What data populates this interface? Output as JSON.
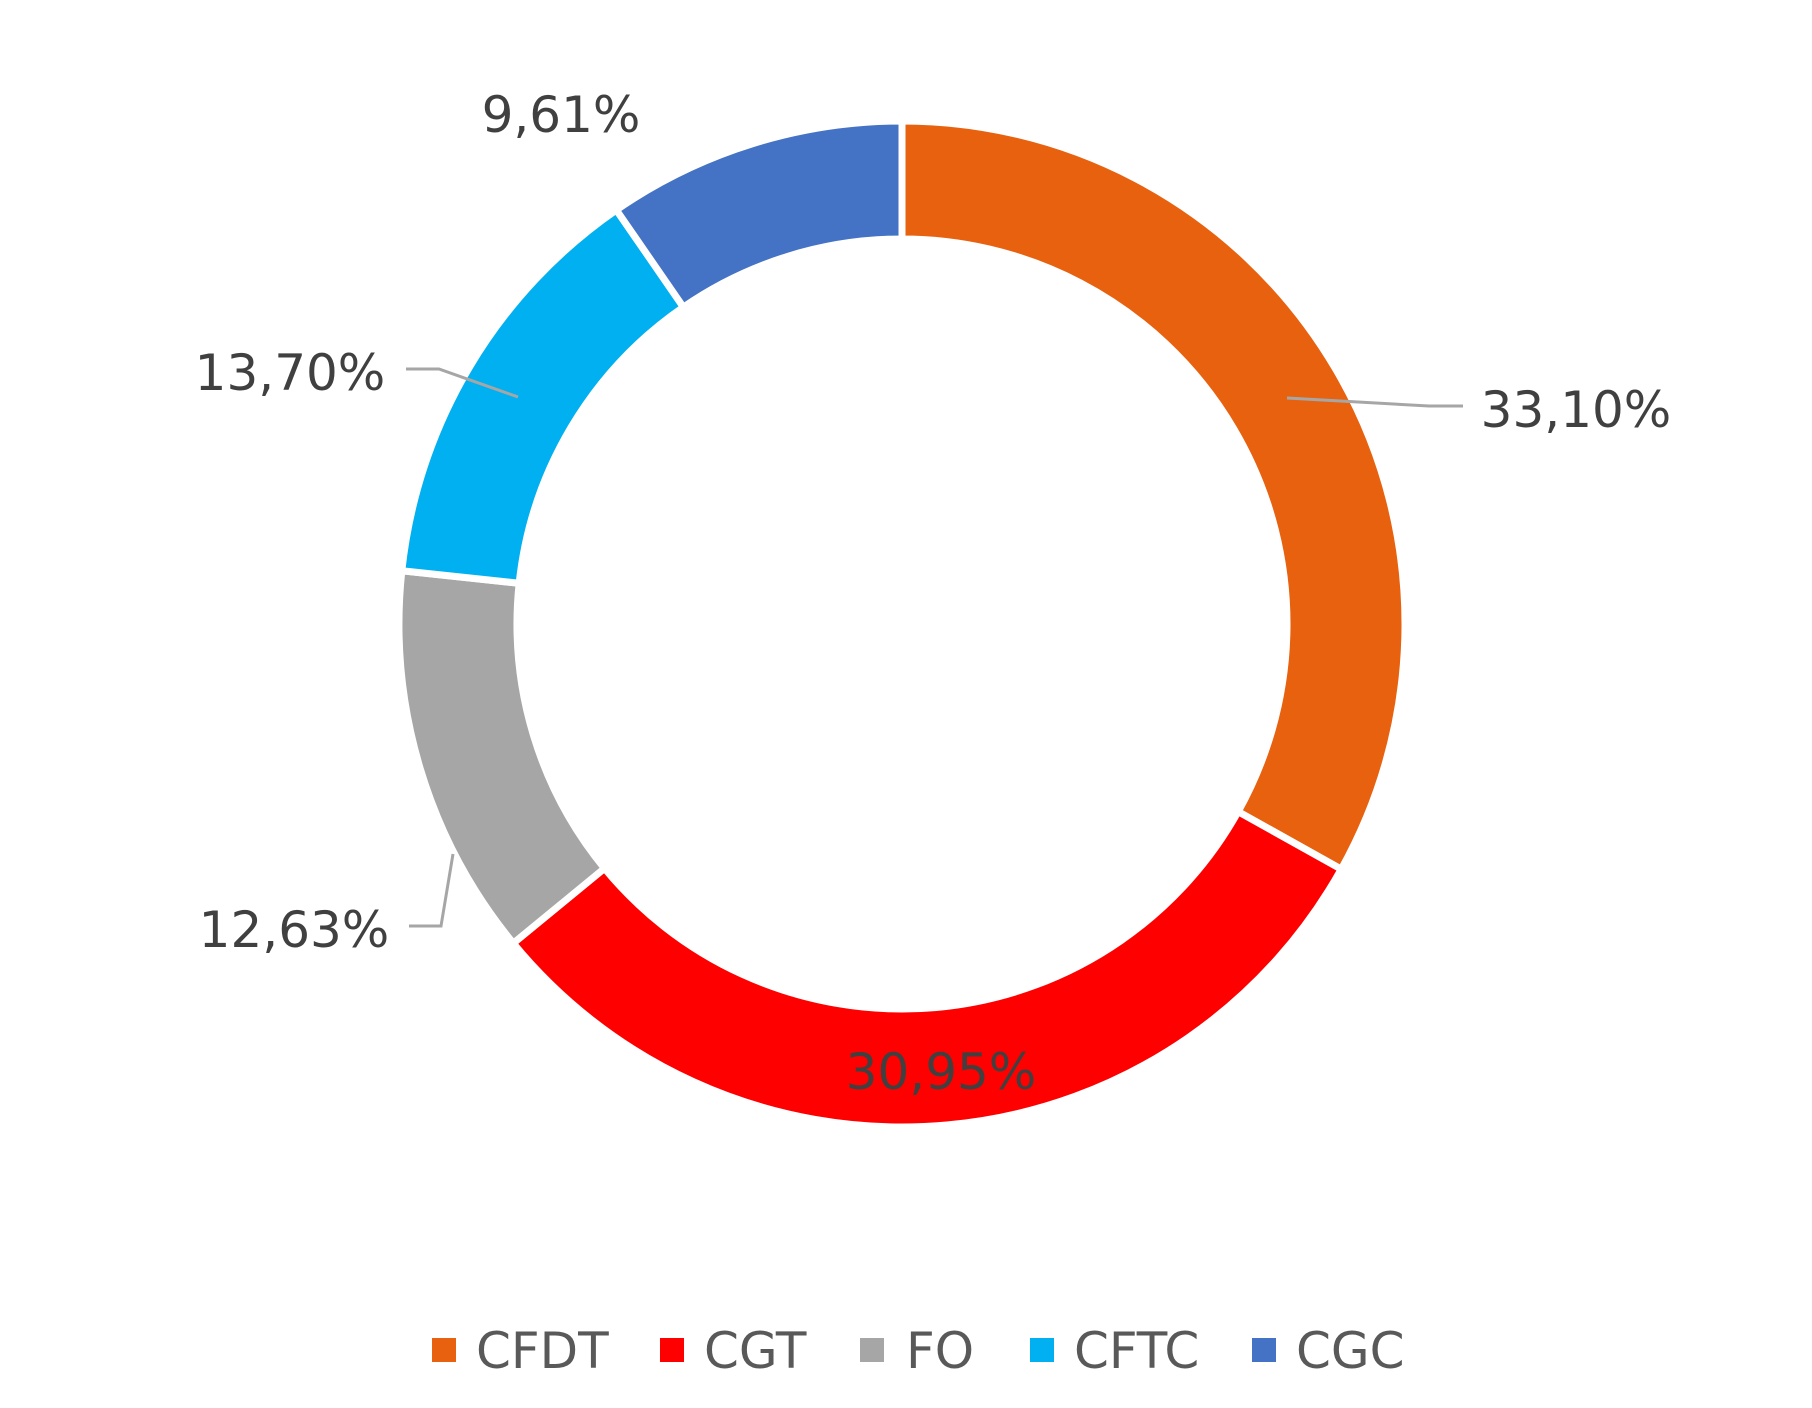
{
  "chart_data": {
    "type": "pie",
    "variant": "donut",
    "categories": [
      "CFDT",
      "CGT",
      "FO",
      "CFTC",
      "CGC"
    ],
    "values": [
      33.1,
      30.95,
      12.63,
      13.7,
      9.61
    ],
    "labels": [
      "33,10%",
      "30,95%",
      "12,63%",
      "13,70%",
      "9,61%"
    ],
    "colors": [
      "#E8610F",
      "#FF0000",
      "#A6A6A6",
      "#00B0F0",
      "#4472C4"
    ],
    "title": "",
    "legend_position": "bottom",
    "start_angle": "top",
    "direction": "clockwise"
  }
}
